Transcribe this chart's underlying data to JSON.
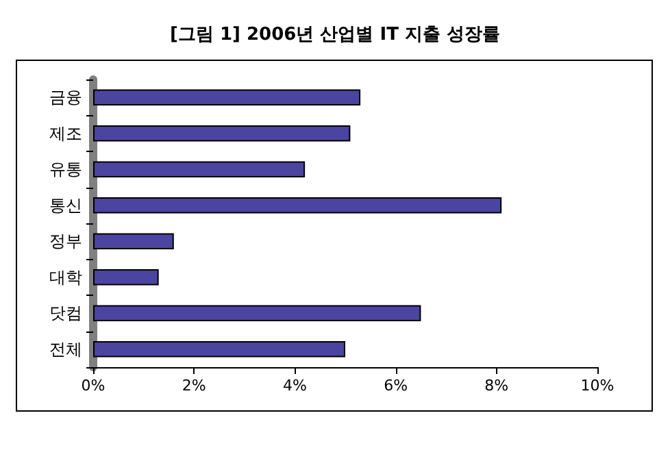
{
  "chart_data": {
    "type": "bar",
    "orientation": "horizontal",
    "title": "[그림 1] 2006년 산업별 IT 지출 성장률",
    "categories": [
      "금융",
      "제조",
      "유통",
      "통신",
      "정부",
      "대학",
      "닷컴",
      "전체"
    ],
    "values": [
      5.3,
      5.1,
      4.2,
      8.1,
      1.6,
      1.3,
      6.5,
      5.0
    ],
    "color": "#4b44a0",
    "xlim": [
      0,
      10
    ],
    "xticks": [
      {
        "value": 0,
        "label": "0%"
      },
      {
        "value": 2,
        "label": "2%"
      },
      {
        "value": 4,
        "label": "4%"
      },
      {
        "value": 6,
        "label": "6%"
      },
      {
        "value": 8,
        "label": "8%"
      },
      {
        "value": 10,
        "label": "10%"
      }
    ],
    "grid": false
  }
}
